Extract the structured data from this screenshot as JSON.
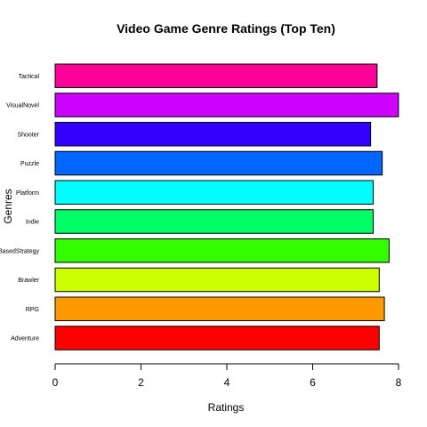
{
  "chart_data": {
    "type": "bar",
    "orientation": "horizontal",
    "title": "Video Game Genre Ratings (Top Ten)",
    "xlabel": "Ratings",
    "ylabel": "Genres",
    "xlim": [
      0,
      8
    ],
    "xticks": [
      0,
      2,
      4,
      6,
      8
    ],
    "grid": false,
    "legend": "none",
    "categories": [
      "Adventure",
      "RPG",
      "Brawler",
      "TurnBasedStrategy",
      "Indie",
      "Platform",
      "Puzzle",
      "Shooter",
      "VisualNovel",
      "Tactical"
    ],
    "values": [
      7.55,
      7.67,
      7.55,
      7.78,
      7.41,
      7.41,
      7.62,
      7.35,
      8.0,
      7.5
    ],
    "colors": [
      "#FF0000",
      "#FF9900",
      "#CCFF00",
      "#33FF00",
      "#00FF66",
      "#00FFFF",
      "#0066FF",
      "#3300FF",
      "#CC00FF",
      "#FF0099"
    ]
  }
}
